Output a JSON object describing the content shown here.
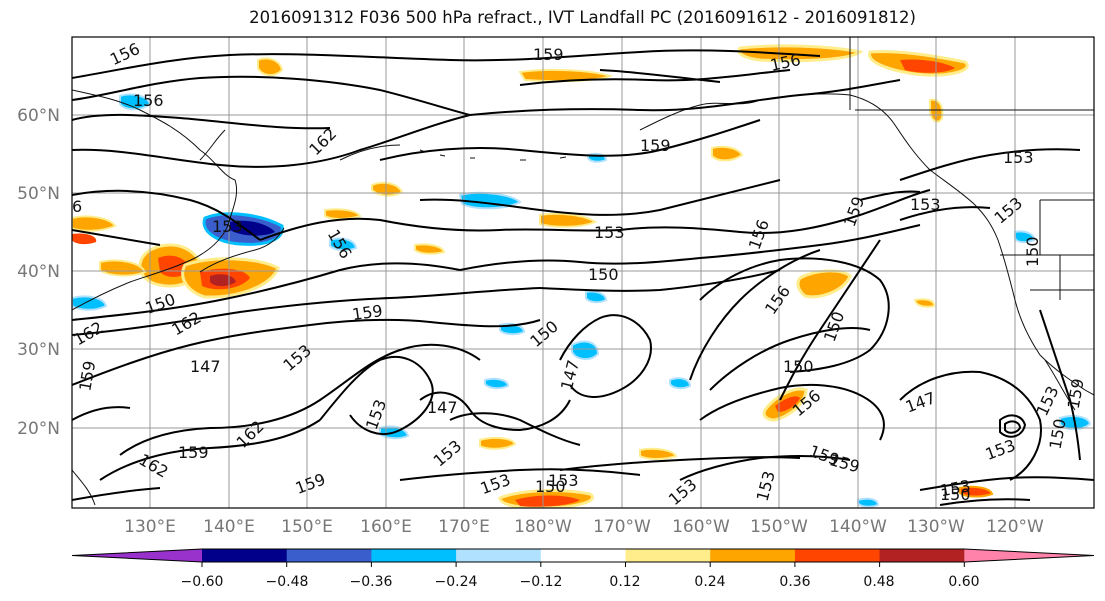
{
  "title": "2016091312 F036 500 hPa refract., IVT Landfall PC (2016091612 - 2016091812)",
  "lat_labels": [
    "60°N",
    "50°N",
    "40°N",
    "30°N",
    "20°N"
  ],
  "lon_labels": [
    "130°E",
    "140°E",
    "150°E",
    "160°E",
    "170°E",
    "180°W",
    "170°W",
    "160°W",
    "150°W",
    "140°W",
    "130°W",
    "120°W"
  ],
  "contour_labels": [
    "156",
    "159",
    "156",
    "156",
    "162",
    "159",
    "153",
    "153",
    "153",
    "156",
    "153",
    "159",
    "153",
    "150",
    "156",
    "150",
    "159",
    "162",
    "162",
    "150",
    "153",
    "156",
    "150",
    "159",
    "147",
    "147",
    "150",
    "156",
    "150",
    "147",
    "153",
    "159",
    "150",
    "153",
    "153",
    "159",
    "147",
    "162",
    "159",
    "162",
    "159",
    "150",
    "153",
    "153",
    "159",
    "153",
    "153",
    "150",
    "153",
    "6"
  ],
  "colorbar": {
    "colors": [
      "#9932cc",
      "#00008b",
      "#3a5fcd",
      "#00bfff",
      "#b0e2ff",
      "#ffffff",
      "#ffec8b",
      "#ffa500",
      "#ff4500",
      "#b22222",
      "#ff82ab"
    ],
    "tick_labels": [
      "−0.60",
      "−0.48",
      "−0.36",
      "−0.24",
      "−0.12",
      "0.12",
      "0.24",
      "0.36",
      "0.48",
      "0.60"
    ]
  }
}
